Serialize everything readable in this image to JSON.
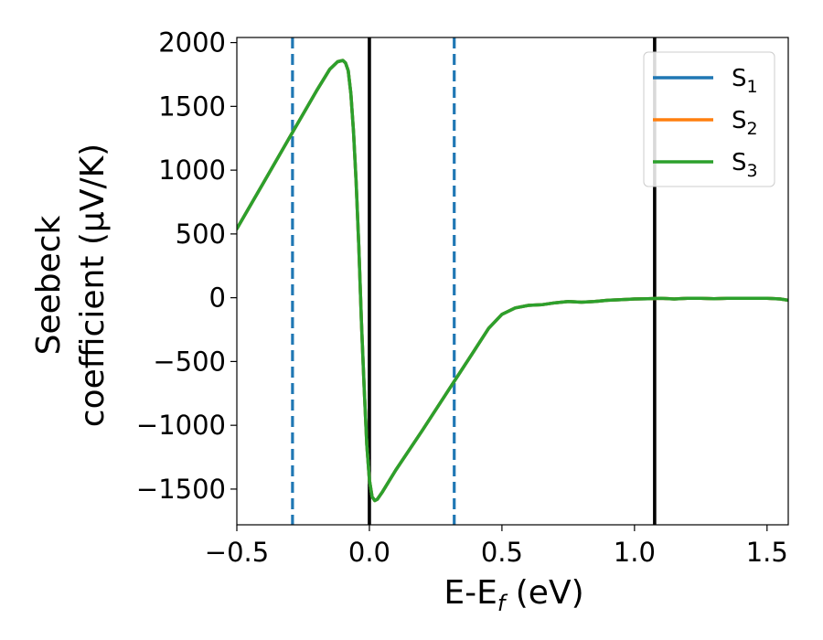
{
  "chart_data": {
    "type": "line",
    "xlabel_parts": {
      "main": "E-E",
      "sub": "f",
      "tail": " (eV)"
    },
    "ylabel_lines": [
      "Seebeck",
      "coefficient  (μV/K)"
    ],
    "xlim": [
      -0.5,
      1.58
    ],
    "ylim": [
      -1780,
      2040
    ],
    "xticks": [
      -0.5,
      0.0,
      0.5,
      1.0,
      1.5
    ],
    "xtick_labels": [
      "−0.5",
      "0.0",
      "0.5",
      "1.0",
      "1.5"
    ],
    "yticks": [
      -1500,
      -1000,
      -500,
      0,
      500,
      1000,
      1500,
      2000
    ],
    "ytick_labels": [
      "−1500",
      "−1000",
      "−500",
      "0",
      "500",
      "1000",
      "1500",
      "2000"
    ],
    "grid": false,
    "legend_position": "top-right",
    "series": [
      {
        "name": "S",
        "sub": "1",
        "color": "#1f77b4"
      },
      {
        "name": "S",
        "sub": "2",
        "color": "#ff7f0e"
      },
      {
        "name": "S",
        "sub": "3",
        "color": "#2ca02c"
      }
    ],
    "curve": {
      "x": [
        -0.5,
        -0.4,
        -0.3,
        -0.2,
        -0.15,
        -0.12,
        -0.1,
        -0.09,
        -0.08,
        -0.07,
        -0.06,
        -0.05,
        -0.04,
        -0.03,
        -0.02,
        -0.01,
        0.0,
        0.01,
        0.02,
        0.03,
        0.05,
        0.1,
        0.2,
        0.3,
        0.4,
        0.45,
        0.5,
        0.55,
        0.6,
        0.65,
        0.7,
        0.75,
        0.8,
        0.85,
        0.9,
        0.95,
        1.0,
        1.05,
        1.1,
        1.15,
        1.2,
        1.25,
        1.3,
        1.35,
        1.4,
        1.45,
        1.5,
        1.55,
        1.58
      ],
      "y": [
        540,
        900,
        1260,
        1620,
        1790,
        1850,
        1860,
        1840,
        1780,
        1600,
        1300,
        900,
        400,
        -200,
        -700,
        -1150,
        -1430,
        -1560,
        -1590,
        -1580,
        -1520,
        -1350,
        -1040,
        -720,
        -400,
        -240,
        -130,
        -80,
        -60,
        -55,
        -40,
        -30,
        -35,
        -30,
        -20,
        -15,
        -10,
        -8,
        -5,
        -10,
        -5,
        -5,
        -8,
        -5,
        -5,
        -5,
        -5,
        -10,
        -20
      ]
    },
    "vlines": [
      {
        "x": 0.0,
        "color": "#000000",
        "style": "solid"
      },
      {
        "x": 1.076,
        "color": "#000000",
        "style": "solid"
      },
      {
        "x": -0.29,
        "color": "#1f77b4",
        "style": "dashed"
      },
      {
        "x": 0.32,
        "color": "#1f77b4",
        "style": "dashed"
      }
    ]
  }
}
